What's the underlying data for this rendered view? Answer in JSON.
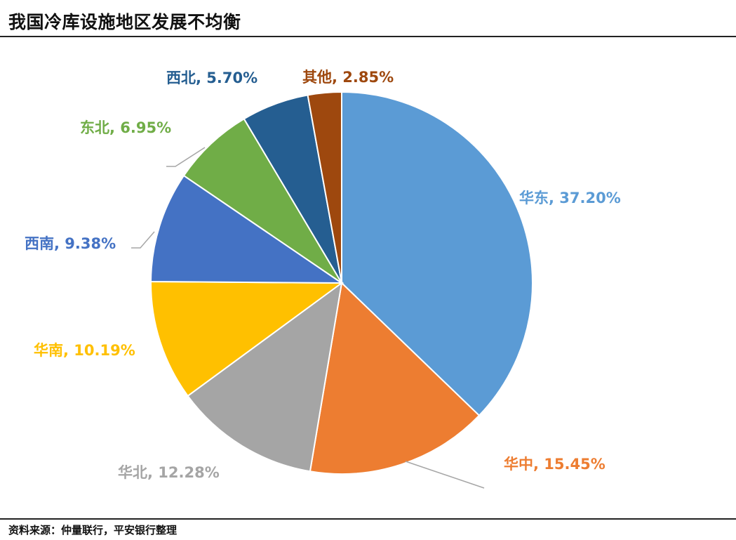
{
  "page": {
    "title": "我国冷库设施地区发展不均衡",
    "source": "资料来源：仲量联行，平安银行整理"
  },
  "chart_data": {
    "type": "pie",
    "title": "我国冷库设施地区发展不均衡",
    "start_angle_deg": 0,
    "direction": "clockwise",
    "slices": [
      {
        "category": "华东",
        "value": 37.2,
        "label": "华东, 37.20%",
        "color": "#5b9bd5"
      },
      {
        "category": "华中",
        "value": 15.45,
        "label": "华中, 15.45%",
        "color": "#ed7d31"
      },
      {
        "category": "华北",
        "value": 12.28,
        "label": "华北, 12.28%",
        "color": "#a5a5a5"
      },
      {
        "category": "华南",
        "value": 10.19,
        "label": "华南, 10.19%",
        "color": "#ffc000"
      },
      {
        "category": "西南",
        "value": 9.38,
        "label": "西南, 9.38%",
        "color": "#4472c4"
      },
      {
        "category": "东北",
        "value": 6.95,
        "label": "东北, 6.95%",
        "color": "#70ad47"
      },
      {
        "category": "西北",
        "value": 5.7,
        "label": "西北, 5.70%",
        "color": "#255e91"
      },
      {
        "category": "其他",
        "value": 2.85,
        "label": "其他, 2.85%",
        "color": "#9e480e"
      }
    ],
    "legend": "none",
    "data_labels": "outside"
  }
}
